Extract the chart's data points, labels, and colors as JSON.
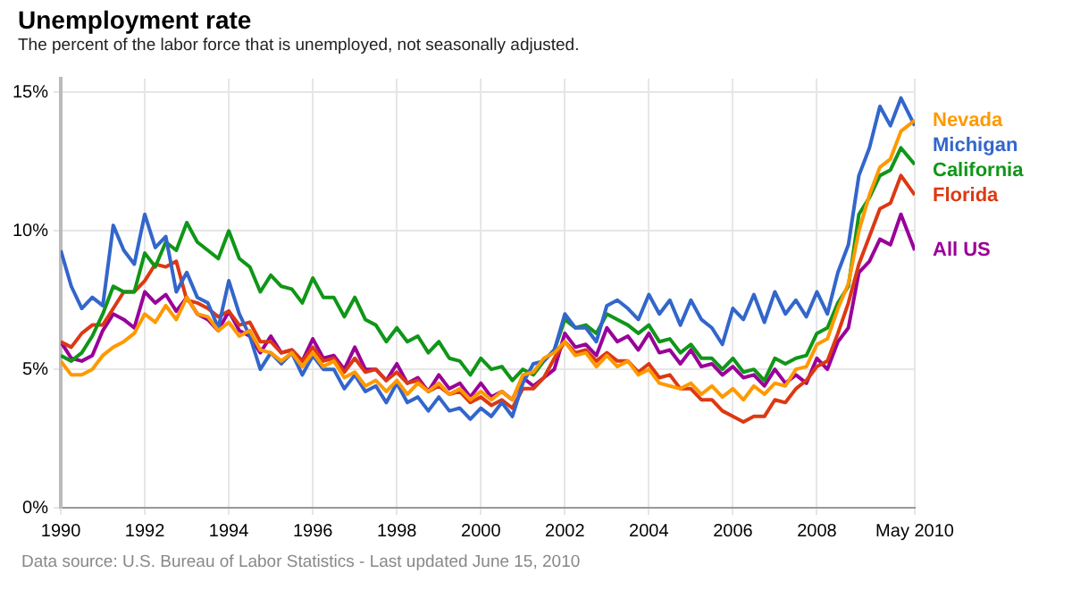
{
  "chart_data": {
    "type": "line",
    "title": "Unemployment rate",
    "subtitle": "The percent of the labor force that is unemployed, not seasonally adjusted.",
    "annotations": [
      "Data source: U.S. Bureau of Labor Statistics - Last updated June 15, 2010"
    ],
    "x": [
      1990,
      1990.25,
      1990.5,
      1990.75,
      1991,
      1991.25,
      1991.5,
      1991.75,
      1992,
      1992.25,
      1992.5,
      1992.75,
      1993,
      1993.25,
      1993.5,
      1993.75,
      1994,
      1994.25,
      1994.5,
      1994.75,
      1995,
      1995.25,
      1995.5,
      1995.75,
      1996,
      1996.25,
      1996.5,
      1996.75,
      1997,
      1997.25,
      1997.5,
      1997.75,
      1998,
      1998.25,
      1998.5,
      1998.75,
      1999,
      1999.25,
      1999.5,
      1999.75,
      2000,
      2000.25,
      2000.5,
      2000.75,
      2001,
      2001.25,
      2001.5,
      2001.75,
      2002,
      2002.25,
      2002.5,
      2002.75,
      2003,
      2003.25,
      2003.5,
      2003.75,
      2004,
      2004.25,
      2004.5,
      2004.75,
      2005,
      2005.25,
      2005.5,
      2005.75,
      2006,
      2006.25,
      2006.5,
      2006.75,
      2007,
      2007.25,
      2007.5,
      2007.75,
      2008,
      2008.25,
      2008.5,
      2008.75,
      2009,
      2009.25,
      2009.5,
      2009.75,
      2010,
      2010.33
    ],
    "series": [
      {
        "name": "Nevada",
        "color": "#ff9900",
        "values": [
          5.3,
          4.8,
          4.8,
          5.0,
          5.5,
          5.8,
          6.0,
          6.3,
          7.0,
          6.7,
          7.3,
          6.8,
          7.6,
          7.0,
          6.9,
          6.4,
          6.7,
          6.2,
          6.4,
          5.7,
          5.6,
          5.3,
          5.6,
          5.1,
          5.6,
          5.1,
          5.3,
          4.7,
          4.9,
          4.4,
          4.6,
          4.2,
          4.6,
          4.1,
          4.5,
          4.2,
          4.5,
          4.1,
          4.3,
          3.9,
          4.2,
          3.9,
          4.2,
          3.9,
          4.8,
          4.9,
          5.4,
          5.6,
          6.0,
          5.5,
          5.6,
          5.1,
          5.5,
          5.1,
          5.3,
          4.8,
          5.0,
          4.5,
          4.4,
          4.3,
          4.5,
          4.1,
          4.4,
          4.0,
          4.3,
          3.9,
          4.4,
          4.1,
          4.5,
          4.4,
          5.0,
          5.1,
          5.9,
          6.1,
          7.2,
          8.1,
          10.0,
          11.3,
          12.3,
          12.6,
          13.6,
          14.0
        ]
      },
      {
        "name": "Michigan",
        "color": "#3366cc",
        "values": [
          9.3,
          8.0,
          7.2,
          7.6,
          7.3,
          10.2,
          9.3,
          8.8,
          10.6,
          9.4,
          9.8,
          7.8,
          8.5,
          7.6,
          7.4,
          6.5,
          8.2,
          7.0,
          6.2,
          5.0,
          5.6,
          5.2,
          5.6,
          4.8,
          5.5,
          5.0,
          5.0,
          4.3,
          4.8,
          4.2,
          4.4,
          3.8,
          4.5,
          3.8,
          4.0,
          3.5,
          4.0,
          3.5,
          3.6,
          3.2,
          3.6,
          3.3,
          3.8,
          3.3,
          4.5,
          5.2,
          5.3,
          5.7,
          7.0,
          6.5,
          6.5,
          6.0,
          7.3,
          7.5,
          7.2,
          6.8,
          7.7,
          7.0,
          7.5,
          6.6,
          7.5,
          6.8,
          6.5,
          5.9,
          7.2,
          6.8,
          7.7,
          6.7,
          7.8,
          7.0,
          7.5,
          6.9,
          7.8,
          7.0,
          8.5,
          9.5,
          12.0,
          13.0,
          14.5,
          13.8,
          14.8,
          13.8
        ]
      },
      {
        "name": "California",
        "color": "#109618",
        "values": [
          5.5,
          5.3,
          5.6,
          6.2,
          7.0,
          8.0,
          7.8,
          7.8,
          9.2,
          8.7,
          9.6,
          9.3,
          10.3,
          9.6,
          9.3,
          9.0,
          10.0,
          9.0,
          8.7,
          7.8,
          8.4,
          8.0,
          7.9,
          7.4,
          8.3,
          7.6,
          7.6,
          6.9,
          7.6,
          6.8,
          6.6,
          6.0,
          6.5,
          6.0,
          6.2,
          5.6,
          6.0,
          5.4,
          5.3,
          4.8,
          5.4,
          5.0,
          5.1,
          4.6,
          5.0,
          4.8,
          5.3,
          5.7,
          6.8,
          6.5,
          6.6,
          6.3,
          7.0,
          6.8,
          6.6,
          6.3,
          6.6,
          6.0,
          6.1,
          5.6,
          5.9,
          5.4,
          5.4,
          5.0,
          5.4,
          4.9,
          5.0,
          4.6,
          5.4,
          5.2,
          5.4,
          5.5,
          6.3,
          6.5,
          7.4,
          8.0,
          10.6,
          11.2,
          12.0,
          12.2,
          13.0,
          12.4
        ]
      },
      {
        "name": "Florida",
        "color": "#dc3912",
        "values": [
          6.0,
          5.8,
          6.3,
          6.6,
          6.6,
          7.2,
          7.8,
          7.8,
          8.2,
          8.8,
          8.7,
          8.9,
          7.5,
          7.4,
          7.2,
          6.9,
          7.1,
          6.6,
          6.7,
          6.0,
          6.0,
          5.6,
          5.7,
          5.3,
          5.8,
          5.3,
          5.4,
          4.9,
          5.4,
          4.9,
          5.0,
          4.6,
          4.9,
          4.5,
          4.6,
          4.2,
          4.4,
          4.1,
          4.2,
          3.8,
          4.0,
          3.7,
          3.9,
          3.6,
          4.3,
          4.3,
          4.7,
          5.4,
          6.0,
          5.6,
          5.7,
          5.3,
          5.6,
          5.3,
          5.3,
          4.9,
          5.2,
          4.7,
          4.8,
          4.3,
          4.3,
          3.9,
          3.9,
          3.5,
          3.3,
          3.1,
          3.3,
          3.3,
          3.9,
          3.8,
          4.3,
          4.6,
          5.1,
          5.3,
          6.3,
          7.4,
          8.8,
          9.8,
          10.8,
          11.0,
          12.0,
          11.3
        ]
      },
      {
        "name": "All US",
        "color": "#990099",
        "values": [
          6.0,
          5.4,
          5.3,
          5.5,
          6.4,
          7.0,
          6.8,
          6.5,
          7.8,
          7.4,
          7.7,
          7.1,
          7.6,
          7.0,
          6.8,
          6.4,
          7.1,
          6.4,
          6.2,
          5.6,
          6.2,
          5.6,
          5.7,
          5.3,
          6.1,
          5.4,
          5.5,
          5.0,
          5.8,
          5.0,
          5.0,
          4.6,
          5.2,
          4.5,
          4.7,
          4.2,
          4.8,
          4.3,
          4.5,
          4.0,
          4.5,
          4.0,
          4.2,
          3.9,
          4.7,
          4.4,
          4.7,
          5.0,
          6.3,
          5.8,
          5.9,
          5.5,
          6.5,
          6.0,
          6.2,
          5.7,
          6.3,
          5.6,
          5.7,
          5.2,
          5.7,
          5.1,
          5.2,
          4.8,
          5.1,
          4.7,
          4.8,
          4.4,
          5.0,
          4.5,
          4.8,
          4.5,
          5.4,
          5.0,
          6.0,
          6.5,
          8.5,
          8.9,
          9.7,
          9.5,
          10.6,
          9.3
        ]
      }
    ],
    "xlim": [
      1990,
      2010.33
    ],
    "xticks": [
      1990,
      1992,
      1994,
      1996,
      1998,
      2000,
      2002,
      2004,
      2006,
      2008,
      {
        "value": 2010.33,
        "label": "May 2010"
      }
    ],
    "ylim": [
      0,
      15.5
    ],
    "yticks": [
      {
        "value": 0,
        "label": "0%"
      },
      {
        "value": 5,
        "label": "5%"
      },
      {
        "value": 10,
        "label": "10%"
      },
      {
        "value": 15,
        "label": "15%"
      }
    ],
    "grid": true,
    "legend": "right",
    "marker": "none",
    "line_style": "solid"
  }
}
